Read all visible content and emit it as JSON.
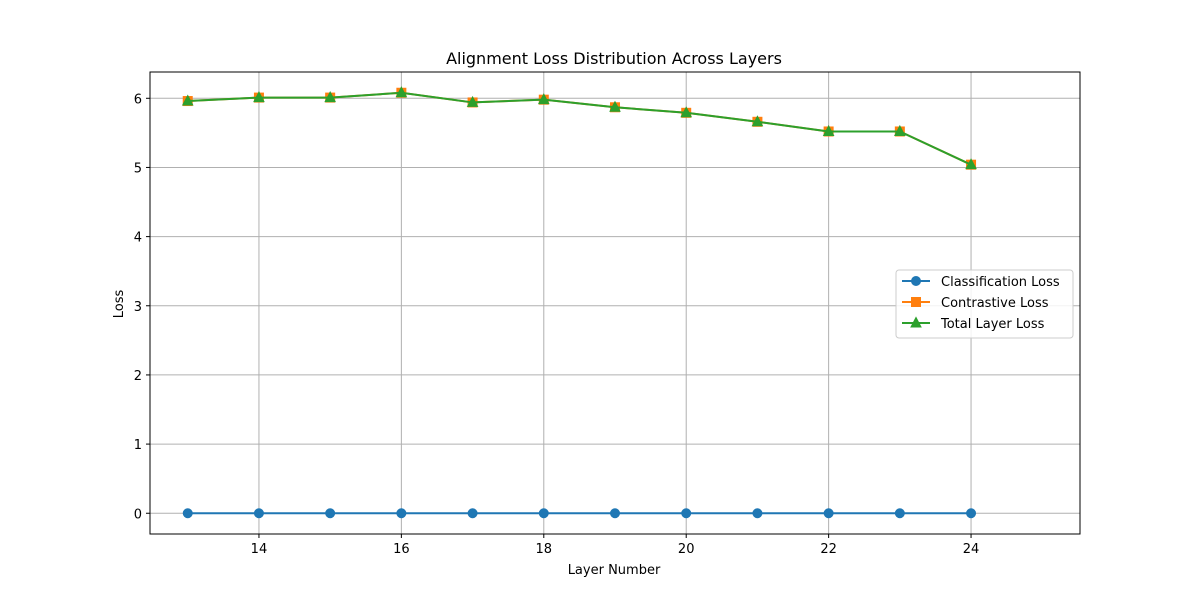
{
  "chart_data": {
    "type": "line",
    "title": "Alignment Loss Distribution Across Layers",
    "xlabel": "Layer Number",
    "ylabel": "Loss",
    "x": [
      13,
      14,
      15,
      16,
      17,
      18,
      19,
      20,
      21,
      22,
      23,
      24
    ],
    "xlim": [
      12.47,
      25.53
    ],
    "ylim": [
      -0.3,
      6.38
    ],
    "x_ticks": [
      14,
      16,
      18,
      20,
      22,
      24
    ],
    "y_ticks": [
      0,
      1,
      2,
      3,
      4,
      5,
      6
    ],
    "grid": true,
    "legend_position": "center-right",
    "series": [
      {
        "name": "Classification Loss",
        "color": "#1f77b4",
        "marker": "circle",
        "values": [
          0,
          0,
          0,
          0,
          0,
          0,
          0,
          0,
          0,
          0,
          0,
          0
        ]
      },
      {
        "name": "Contrastive Loss",
        "color": "#ff7f0e",
        "marker": "square",
        "values": [
          5.96,
          6.01,
          6.01,
          6.08,
          5.94,
          5.98,
          5.87,
          5.79,
          5.66,
          5.52,
          5.52,
          5.04
        ]
      },
      {
        "name": "Total Layer Loss",
        "color": "#2ca02c",
        "marker": "triangle",
        "values": [
          5.96,
          6.01,
          6.01,
          6.08,
          5.94,
          5.98,
          5.87,
          5.79,
          5.66,
          5.52,
          5.52,
          5.04
        ]
      }
    ]
  }
}
